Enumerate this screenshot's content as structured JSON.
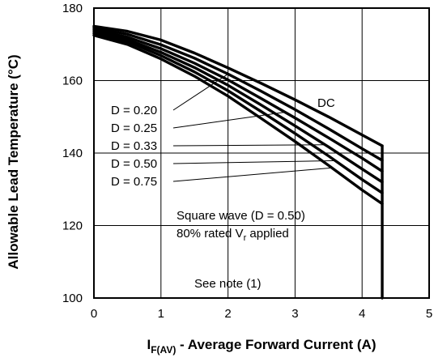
{
  "chart_data": {
    "type": "line",
    "ylabel": "Allowable Lead Temperature (°C)",
    "xlabel": {
      "main": "I",
      "subscript": "F(AV)",
      "rest": " - Average Forward Current (A)"
    },
    "xlim": [
      0,
      5
    ],
    "ylim": [
      100,
      180
    ],
    "x_ticks": [
      "0",
      "1",
      "2",
      "3",
      "4",
      "5"
    ],
    "y_ticks": [
      "100",
      "120",
      "140",
      "160",
      "180"
    ],
    "grid": true,
    "cutoff_current": 4.3,
    "series": [
      {
        "name": "DC",
        "x": [
          0,
          0.5,
          1,
          1.5,
          2,
          2.5,
          3,
          3.5,
          4,
          4.3
        ],
        "y": [
          175,
          173.6,
          171.2,
          167.6,
          163.5,
          159.2,
          154.7,
          150.0,
          145.0,
          142.0
        ]
      },
      {
        "name": "D = 0.20",
        "x": [
          0,
          0.5,
          1,
          1.5,
          2,
          2.5,
          3,
          3.5,
          4,
          4.3
        ],
        "y": [
          174.5,
          172.8,
          169.9,
          166.2,
          161.8,
          157.0,
          152.0,
          146.7,
          141.2,
          138.0
        ]
      },
      {
        "name": "D = 0.25",
        "x": [
          0,
          0.5,
          1,
          1.5,
          2,
          2.5,
          3,
          3.5,
          4,
          4.3
        ],
        "y": [
          174.0,
          172.0,
          168.8,
          164.8,
          160.2,
          155.0,
          149.7,
          144.2,
          138.6,
          135.0
        ]
      },
      {
        "name": "D = 0.33",
        "x": [
          0,
          0.5,
          1,
          1.5,
          2,
          2.5,
          3,
          3.5,
          4,
          4.3
        ],
        "y": [
          173.5,
          171.3,
          167.8,
          163.6,
          158.7,
          153.2,
          147.5,
          141.7,
          135.6,
          132.0
        ]
      },
      {
        "name": "D = 0.50",
        "x": [
          0,
          0.5,
          1,
          1.5,
          2,
          2.5,
          3,
          3.5,
          4,
          4.3
        ],
        "y": [
          173.0,
          170.7,
          166.9,
          162.4,
          157.2,
          151.4,
          145.4,
          139.2,
          132.7,
          129.0
        ]
      },
      {
        "name": "D = 0.75",
        "x": [
          0,
          0.5,
          1,
          1.5,
          2,
          2.5,
          3,
          3.5,
          4,
          4.3
        ],
        "y": [
          172.5,
          170.0,
          166.0,
          161.2,
          155.7,
          149.5,
          143.2,
          136.6,
          129.8,
          126.0
        ]
      }
    ],
    "annotations": {
      "dc_label": "DC",
      "duty_labels": [
        "D = 0.20",
        "D = 0.25",
        "D = 0.33",
        "D = 0.50",
        "D = 0.75"
      ],
      "square_wave": "Square wave (D = 0.50)",
      "rated_prefix": "80% rated V",
      "rated_sub": "r",
      "rated_suffix": " applied",
      "see_note": "See note (1)"
    }
  }
}
